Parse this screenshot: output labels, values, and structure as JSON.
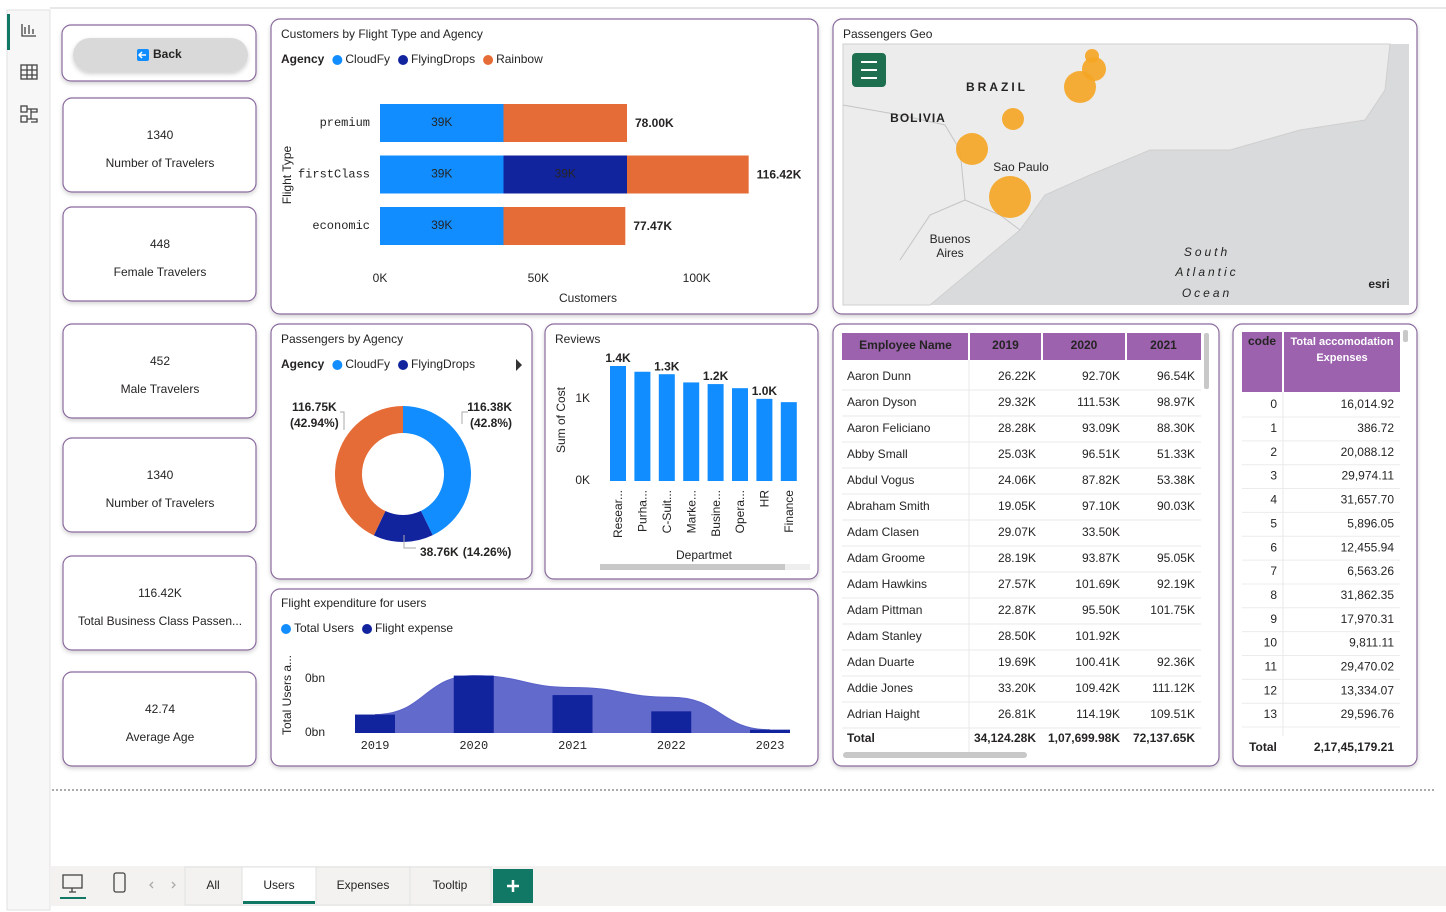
{
  "back_button": {
    "label": "Back"
  },
  "cards": [
    {
      "value": "1340",
      "label": "Number of Travelers"
    },
    {
      "value": "448",
      "label": "Female Travelers"
    },
    {
      "value": "452",
      "label": "Male Travelers"
    },
    {
      "value": "1340",
      "label": "Number of Travelers"
    },
    {
      "value": "116.42K",
      "label": "Total Business Class Passen..."
    },
    {
      "value": "42.74",
      "label": "Average Age"
    }
  ],
  "chart_data": [
    {
      "type": "bar",
      "orientation": "horizontal",
      "stacked": true,
      "title": "Customers by Flight Type and Agency",
      "legend_title": "Agency",
      "categories": [
        "premium",
        "firstClass",
        "economic"
      ],
      "series": [
        {
          "name": "CloudFy",
          "color": "#118dff",
          "values": [
            39000,
            39000,
            39000
          ],
          "value_labels": [
            "39K",
            "39K",
            "39K"
          ]
        },
        {
          "name": "FlyingDrops",
          "color": "#12239e",
          "values": [
            null,
            39000,
            null
          ],
          "value_labels": [
            null,
            "39K",
            null
          ]
        },
        {
          "name": "Rainbow",
          "color": "#e66c37",
          "values": [
            39000,
            38420,
            38470
          ]
        }
      ],
      "totals": [
        78000,
        116420,
        77470
      ],
      "total_labels": [
        "78.00K",
        "116.42K",
        "77.47K"
      ],
      "xlim": [
        0,
        120000
      ],
      "xticks": [
        {
          "value": 0,
          "label": "0K"
        },
        {
          "value": 50000,
          "label": "50K"
        },
        {
          "value": 100000,
          "label": "100K"
        }
      ],
      "x_label": "Customers",
      "y_label": "Flight Type"
    },
    {
      "type": "pie",
      "donut": true,
      "title": "Passengers by Agency",
      "legend_title": "Agency",
      "categories": [
        "CloudFy",
        "FlyingDrops",
        null
      ],
      "values": [
        116380,
        38760,
        116750
      ],
      "colors": [
        "#118dff",
        "#12239e",
        "#e66c37"
      ],
      "value_labels": [
        "116.38K",
        "38.76K",
        "116.75K"
      ],
      "percent_labels": [
        "(42.8%)",
        "(14.26%)",
        "(42.94%)"
      ]
    },
    {
      "type": "bar",
      "title": "Reviews",
      "categories": [
        "Resear...",
        "Purha...",
        "C-Suit...",
        "Marke...",
        "Busine...",
        "Opera...",
        "HR",
        "Finance"
      ],
      "values": [
        1400,
        1330,
        1300,
        1200,
        1180,
        1130,
        1000,
        960
      ],
      "value_labels": [
        "1.4K",
        null,
        "1.3K",
        null,
        "1.2K",
        null,
        "1.0K",
        null
      ],
      "color": "#118dff",
      "label_color": "#e66c37",
      "ylim": [
        0,
        1400
      ],
      "yticks": [
        {
          "value": 0,
          "label": "0K"
        },
        {
          "value": 1000,
          "label": "1K"
        }
      ],
      "x_label": "Departmet",
      "y_label": "Sum of Cost"
    },
    {
      "type": "area",
      "title": "Flight expenditure for users",
      "categories": [
        "2019",
        "2020",
        "2021",
        "2022",
        "2023"
      ],
      "series": [
        {
          "name": "Total Users",
          "color": "#5a62c8",
          "legend_color": "#118dff",
          "values": [
            17000000,
            53000000,
            42000000,
            33000000,
            3000000
          ]
        },
        {
          "name": "Flight expense",
          "color": "#12239e",
          "values": [
            17000000,
            53000000,
            35000000,
            20000000,
            3000000
          ]
        }
      ],
      "ylim": [
        0,
        60000000
      ],
      "yticks": [
        {
          "value": 0,
          "label": "0bn"
        },
        {
          "value": 50000000,
          "label": "0bn"
        }
      ],
      "y_label": "Total Users a..."
    }
  ],
  "map": {
    "title": "Passengers Geo",
    "labels": [
      "BRAZIL",
      "BOLIVIA",
      "Sao Paulo",
      "Buenos",
      "Aires",
      "South",
      "Atlantic",
      "Ocean",
      "esri"
    ]
  },
  "employee_table": {
    "columns": [
      "Employee Name",
      "2019",
      "2020",
      "2021"
    ],
    "rows": [
      [
        "Aaron Dunn",
        "26.22K",
        "92.70K",
        "96.54K"
      ],
      [
        "Aaron Dyson",
        "29.32K",
        "111.53K",
        "98.97K"
      ],
      [
        "Aaron Feliciano",
        "28.28K",
        "93.09K",
        "88.30K"
      ],
      [
        "Abby Small",
        "25.03K",
        "96.51K",
        "51.33K"
      ],
      [
        "Abdul Vogus",
        "24.06K",
        "87.82K",
        "53.38K"
      ],
      [
        "Abraham Smith",
        "19.05K",
        "97.10K",
        "90.03K"
      ],
      [
        "Adam Clasen",
        "29.07K",
        "33.50K",
        null
      ],
      [
        "Adam Groome",
        "28.19K",
        "93.87K",
        "95.05K"
      ],
      [
        "Adam Hawkins",
        "27.57K",
        "101.69K",
        "92.19K"
      ],
      [
        "Adam Pittman",
        "22.87K",
        "95.50K",
        "101.75K"
      ],
      [
        "Adam Stanley",
        "28.50K",
        "101.92K",
        null
      ],
      [
        "Adan Duarte",
        "19.69K",
        "100.41K",
        "92.36K"
      ],
      [
        "Addie Jones",
        "33.20K",
        "109.42K",
        "111.12K"
      ],
      [
        "Adrian Haight",
        "26.81K",
        "114.19K",
        "109.51K"
      ]
    ],
    "total": [
      "Total",
      "34,124.28K",
      "1,07,699.98K",
      "72,137.65K"
    ]
  },
  "code_table": {
    "columns": [
      "code",
      "Total accomodation Expenses"
    ],
    "rows": [
      [
        0,
        "16,014.92"
      ],
      [
        1,
        "386.72"
      ],
      [
        2,
        "20,088.12"
      ],
      [
        3,
        "29,974.11"
      ],
      [
        4,
        "31,657.70"
      ],
      [
        5,
        "5,896.05"
      ],
      [
        6,
        "12,455.94"
      ],
      [
        7,
        "6,563.26"
      ],
      [
        8,
        "31,862.35"
      ],
      [
        9,
        "17,970.31"
      ],
      [
        10,
        "9,811.11"
      ],
      [
        11,
        "29,470.02"
      ],
      [
        12,
        "13,334.07"
      ],
      [
        13,
        "29,596.76"
      ]
    ],
    "total": [
      "Total",
      "2,17,45,179.21"
    ]
  },
  "tabs": {
    "items": [
      "All",
      "Users",
      "Expenses",
      "Tooltip"
    ],
    "active": "Users"
  }
}
